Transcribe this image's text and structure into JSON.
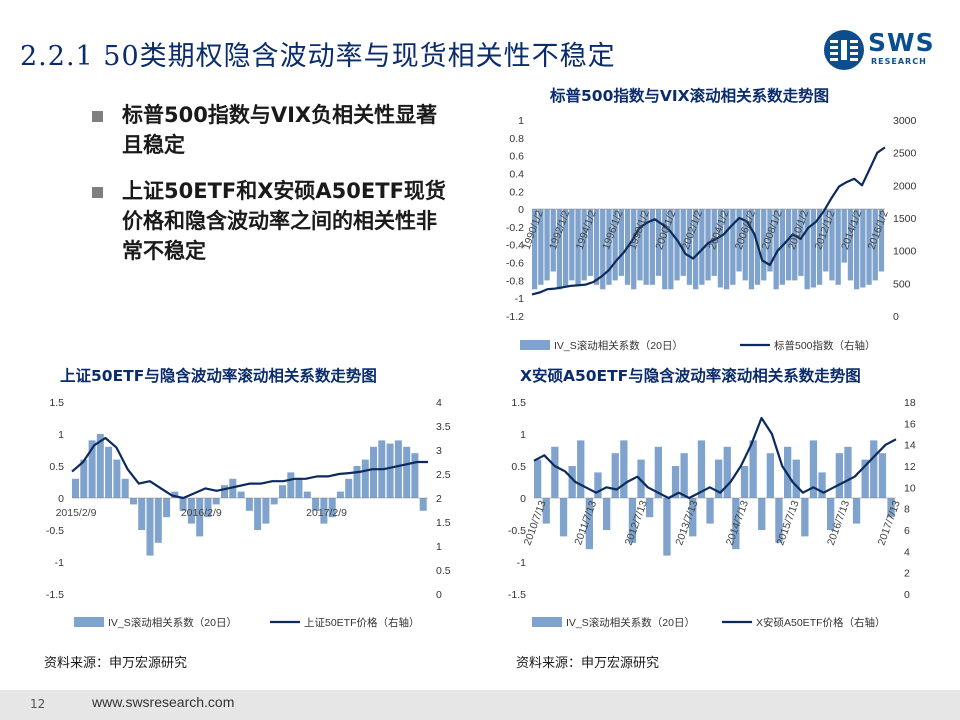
{
  "slide": {
    "title": "2.2.1  50类期权隐含波动率与现货相关性不稳定",
    "logo_text": "SWS",
    "logo_sub": "RESEARCH",
    "bullets": [
      "标普500指数与VIX负相关性显著且稳定",
      "上证50ETF和X安硕A50ETF现货价格和隐含波动率之间的相关性非常不稳定"
    ],
    "source_left": "资料来源：申万宏源研究",
    "source_right": "资料来源：申万宏源研究",
    "page_number": "12",
    "url": "www.swsresearch.com"
  },
  "colors": {
    "bars": "#7fa3cc",
    "line": "#0d2a5c",
    "title": "#0b2c6b",
    "logo": "#0b4d8f"
  },
  "chart_data": [
    {
      "id": "sp500",
      "type": "bar+line",
      "title": "标普500指数与VIX滚动相关系数走势图",
      "x_ticks": [
        "1990/1/2",
        "1992/1/2",
        "1994/1/2",
        "1996/1/2",
        "1998/1/2",
        "2000/1/2",
        "2002/1/2",
        "2004/1/2",
        "2006/1/2",
        "2008/1/2",
        "2010/1/2",
        "2012/1/2",
        "2014/1/2",
        "2016/1/2"
      ],
      "y_left": {
        "ticks": [
          "1",
          "0.8",
          "0.6",
          "0.4",
          "0.2",
          "0",
          "-0.2",
          "-0.4",
          "-0.6",
          "-0.8",
          "-1",
          "-1.2"
        ],
        "min": -1.2,
        "max": 1
      },
      "y_right": {
        "ticks": [
          "3000",
          "2500",
          "2000",
          "1500",
          "1000",
          "500",
          "0"
        ],
        "min": 0,
        "max": 3000
      },
      "series": [
        {
          "name": "IV_S滚动相关系数（20日）",
          "kind": "bar",
          "values": [
            -0.9,
            -0.85,
            -0.8,
            -0.7,
            -0.9,
            -0.88,
            -0.8,
            -0.85,
            -0.8,
            -0.75,
            -0.85,
            -0.9,
            -0.85,
            -0.8,
            -0.75,
            -0.85,
            -0.9,
            -0.8,
            -0.85,
            -0.85,
            -0.75,
            -0.9,
            -0.9,
            -0.8,
            -0.75,
            -0.85,
            -0.9,
            -0.85,
            -0.8,
            -0.75,
            -0.88,
            -0.9,
            -0.85,
            -0.7,
            -0.8,
            -0.9,
            -0.85,
            -0.8,
            -0.7,
            -0.9,
            -0.85,
            -0.8,
            -0.8,
            -0.75,
            -0.9,
            -0.88,
            -0.85,
            -0.7,
            -0.8,
            -0.85,
            -0.6,
            -0.8,
            -0.9,
            -0.88,
            -0.85,
            -0.8,
            -0.7
          ]
        },
        {
          "name": "标普500指数（右轴）",
          "kind": "line",
          "values": [
            330,
            360,
            410,
            420,
            440,
            460,
            470,
            480,
            520,
            600,
            700,
            850,
            980,
            1150,
            1350,
            1430,
            1480,
            1400,
            1300,
            1150,
            950,
            880,
            1000,
            1120,
            1180,
            1250,
            1380,
            1500,
            1450,
            1250,
            850,
            780,
            1000,
            1120,
            1250,
            1180,
            1350,
            1440,
            1600,
            1800,
            1980,
            2050,
            2100,
            2000,
            2250,
            2500,
            2580
          ]
        }
      ]
    },
    {
      "id": "sz50",
      "type": "bar+line",
      "title": "上证50ETF与隐含波动率滚动相关系数走势图",
      "x_ticks": [
        "2015/2/9",
        "2016/2/9",
        "2017/2/9"
      ],
      "y_left": {
        "ticks": [
          "1.5",
          "1",
          "0.5",
          "0",
          "-0.5",
          "-1",
          "-1.5"
        ],
        "min": -1.5,
        "max": 1.5
      },
      "y_right": {
        "ticks": [
          "4",
          "3.5",
          "3",
          "2.5",
          "2",
          "1.5",
          "1",
          "0.5",
          "0"
        ],
        "min": 0,
        "max": 4
      },
      "series": [
        {
          "name": "IV_S滚动相关系数（20日）",
          "kind": "bar",
          "values": [
            0.3,
            0.6,
            0.9,
            1.0,
            0.8,
            0.6,
            0.3,
            -0.1,
            -0.5,
            -0.9,
            -0.7,
            -0.3,
            0.1,
            -0.2,
            -0.4,
            -0.6,
            -0.3,
            -0.1,
            0.2,
            0.3,
            0.1,
            -0.2,
            -0.5,
            -0.4,
            -0.1,
            0.2,
            0.4,
            0.3,
            0.1,
            -0.2,
            -0.4,
            -0.3,
            0.1,
            0.3,
            0.5,
            0.6,
            0.8,
            0.9,
            0.85,
            0.9,
            0.8,
            0.7,
            -0.2
          ]
        },
        {
          "name": "上证50ETF价格（右轴）",
          "kind": "line",
          "values": [
            2.55,
            2.75,
            3.1,
            3.25,
            3.05,
            2.6,
            2.3,
            2.35,
            2.2,
            2.05,
            2.0,
            2.1,
            2.2,
            2.15,
            2.2,
            2.25,
            2.3,
            2.3,
            2.35,
            2.35,
            2.4,
            2.4,
            2.45,
            2.45,
            2.5,
            2.52,
            2.55,
            2.6,
            2.6,
            2.65,
            2.7,
            2.75,
            2.75
          ]
        }
      ]
    },
    {
      "id": "a50",
      "type": "bar+line",
      "title": "X安硕A50ETF与隐含波动率滚动相关系数走势图",
      "x_ticks": [
        "2010/7/13",
        "2011/7/13",
        "2012/7/13",
        "2013/7/13",
        "2014/7/13",
        "2015/7/13",
        "2016/7/13",
        "2017/7/13"
      ],
      "y_left": {
        "ticks": [
          "1.5",
          "1",
          "0.5",
          "0",
          "-0.5",
          "-1",
          "-1.5"
        ],
        "min": -1.5,
        "max": 1.5
      },
      "y_right": {
        "ticks": [
          "18",
          "16",
          "14",
          "12",
          "10",
          "8",
          "6",
          "4",
          "2",
          "0"
        ],
        "min": 0,
        "max": 18
      },
      "series": [
        {
          "name": "IV_S滚动相关系数（20日）",
          "kind": "bar",
          "values": [
            0.6,
            -0.4,
            0.8,
            -0.6,
            0.5,
            0.9,
            -0.8,
            0.4,
            -0.5,
            0.7,
            0.9,
            -0.7,
            0.6,
            -0.3,
            0.8,
            -0.9,
            0.5,
            0.7,
            -0.6,
            0.9,
            -0.4,
            0.6,
            0.8,
            -0.8,
            0.5,
            0.9,
            -0.5,
            0.7,
            -0.7,
            0.8,
            0.6,
            -0.6,
            0.9,
            0.4,
            -0.5,
            0.7,
            0.8,
            -0.4,
            0.6,
            0.9,
            0.7,
            -0.3
          ]
        },
        {
          "name": "X安硕A50ETF价格（右轴）",
          "kind": "line",
          "values": [
            12.5,
            13.0,
            12.0,
            11.5,
            10.5,
            10.0,
            9.5,
            10.0,
            9.8,
            10.5,
            11.0,
            10.0,
            9.5,
            9.0,
            9.5,
            9.0,
            9.5,
            10.0,
            9.5,
            10.5,
            12.0,
            14.0,
            16.5,
            15.0,
            12.0,
            10.5,
            9.5,
            10.0,
            9.5,
            10.0,
            10.5,
            11.0,
            12.0,
            13.0,
            14.0,
            14.5
          ]
        }
      ]
    }
  ]
}
